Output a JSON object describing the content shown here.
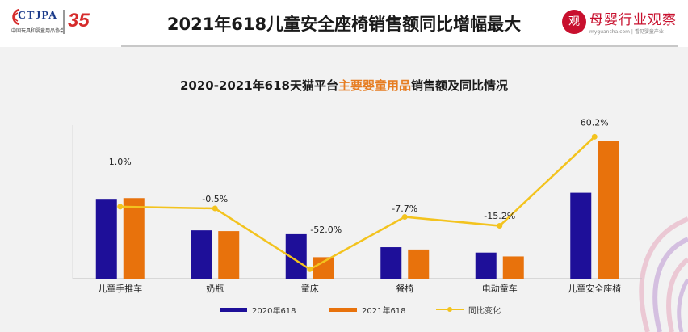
{
  "header": {
    "org_name": "CTJPA",
    "org_subtitle": "中国玩具和婴童用品协会",
    "anniversary": "35",
    "title": "2021年618儿童安全座椅销售额同比增幅最大",
    "brand_badge": "观",
    "brand_name": "母婴行业观察",
    "brand_url": "myguancha.com | 看见婴童产业"
  },
  "subtitle": {
    "prefix": "2020-2021年618天猫平台",
    "highlight": "主要婴童用品",
    "suffix": "销售额及同比情况"
  },
  "colors": {
    "series_2020": "#1e0f99",
    "series_2021": "#e8720c",
    "yoy_line": "#f3c31e",
    "highlight_text": "#e67d22"
  },
  "chart_data": {
    "type": "bar",
    "categories": [
      "儿童手推车",
      "奶瓶",
      "童床",
      "餐椅",
      "电动童车",
      "儿童安全座椅"
    ],
    "series": [
      {
        "name": "2020年618",
        "values": [
          104,
          63,
          58,
          41,
          34,
          112
        ]
      },
      {
        "name": "2021年618",
        "values": [
          105,
          62,
          28,
          38,
          29,
          180
        ]
      }
    ],
    "line_series": {
      "name": "同比变化",
      "values": [
        1.0,
        -0.5,
        -52.0,
        -7.7,
        -15.2,
        60.2
      ],
      "labels": [
        "1.0%",
        "-0.5%",
        "-52.0%",
        "-7.7%",
        "-15.2%",
        "60.2%"
      ]
    },
    "ylim": [
      0,
      200
    ],
    "line_ylim": [
      -60,
      70
    ],
    "legend": [
      "2020年618",
      "2021年618",
      "同比变化"
    ],
    "legend_position": "bottom",
    "grid": false
  }
}
